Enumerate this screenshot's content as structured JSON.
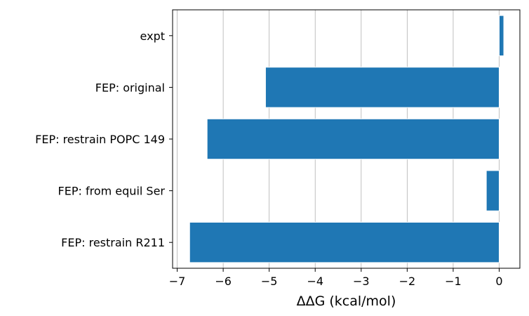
{
  "chart_data": {
    "type": "bar",
    "orientation": "horizontal",
    "categories": [
      "expt",
      "FEP: original",
      "FEP: restrain POPC 149",
      "FEP: from equil Ser",
      "FEP: restrain R211"
    ],
    "values": [
      0.1,
      -5.08,
      -6.35,
      -0.28,
      -6.73
    ],
    "title": "",
    "xlabel": "ΔΔG (kcal/mol)",
    "ylabel": "",
    "xlim": [
      -7.1,
      0.45
    ],
    "xticks": [
      -7,
      -6,
      -5,
      -4,
      -3,
      -2,
      -1,
      0
    ],
    "xtick_labels": [
      "−7",
      "−6",
      "−5",
      "−4",
      "−3",
      "−2",
      "−1",
      "0"
    ],
    "grid": "vertical",
    "legend": "none",
    "bar_color": "#1f77b4",
    "bar_edge_color": "#ffffff"
  }
}
